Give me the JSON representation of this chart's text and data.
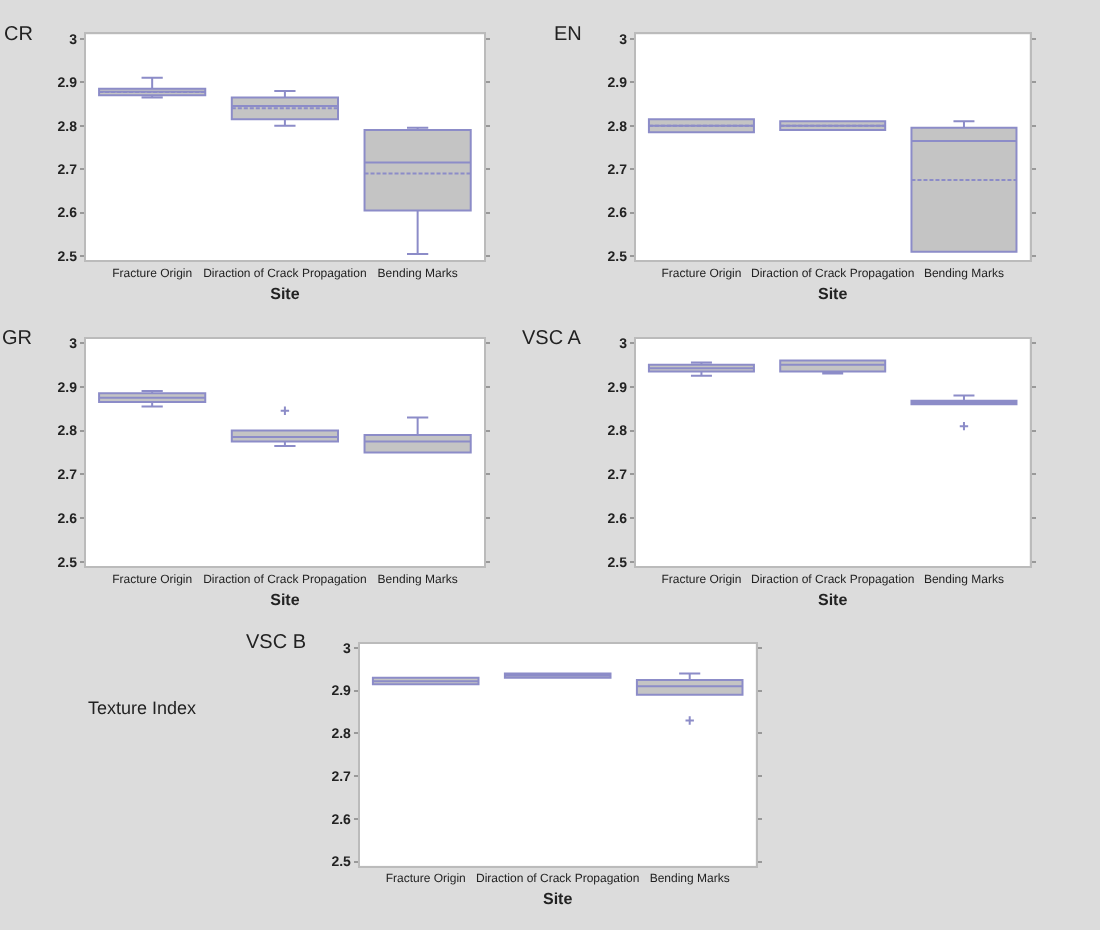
{
  "chart_data": [
    {
      "type": "box",
      "title": "CR",
      "xlabel": "Site",
      "categories": [
        "Fracture Origin",
        "Diraction of Crack Propagation",
        "Bending Marks"
      ],
      "color": "#c4c4c4",
      "ylim": [
        2.49,
        3.01
      ],
      "yticks": [
        2.5,
        2.6,
        2.7,
        2.8,
        2.9,
        3
      ],
      "grid": false,
      "boxes": [
        {
          "low": 2.865,
          "q1": 2.87,
          "median": 2.878,
          "q3": 2.885,
          "high": 2.91
        },
        {
          "low": 2.8,
          "q1": 2.815,
          "median": 2.845,
          "q3": 2.865,
          "high": 2.88
        },
        {
          "low": 2.505,
          "q1": 2.605,
          "median": 2.715,
          "q3": 2.79,
          "high": 2.795,
          "mean": 2.69
        }
      ]
    },
    {
      "type": "box",
      "title": "EN",
      "xlabel": "Site",
      "categories": [
        "Fracture Origin",
        "Diraction of Crack Propagation",
        "Bending Marks"
      ],
      "color": "#c4c4c4",
      "ylim": [
        2.49,
        3.01
      ],
      "yticks": [
        2.5,
        2.6,
        2.7,
        2.8,
        2.9,
        3
      ],
      "grid": false,
      "boxes": [
        {
          "low": 2.785,
          "q1": 2.785,
          "median": 2.8,
          "q3": 2.815,
          "high": 2.815
        },
        {
          "low": 2.79,
          "q1": 2.79,
          "median": 2.8,
          "q3": 2.81,
          "high": 2.81
        },
        {
          "low": 2.51,
          "q1": 2.51,
          "median": 2.765,
          "q3": 2.795,
          "high": 2.81,
          "mean": 2.675
        }
      ]
    },
    {
      "type": "box",
      "title": "GR",
      "xlabel": "Site",
      "categories": [
        "Fracture Origin",
        "Diraction of Crack Propagation",
        "Bending Marks"
      ],
      "color": "#c4c4c4",
      "ylim": [
        2.49,
        3.01
      ],
      "yticks": [
        2.5,
        2.6,
        2.7,
        2.8,
        2.9,
        3
      ],
      "grid": false,
      "boxes": [
        {
          "low": 2.855,
          "q1": 2.865,
          "median": 2.875,
          "q3": 2.885,
          "high": 2.89
        },
        {
          "low": 2.765,
          "q1": 2.775,
          "median": 2.785,
          "q3": 2.8,
          "high": 2.8,
          "outliers": [
            2.845
          ]
        },
        {
          "low": 2.75,
          "q1": 2.75,
          "median": 2.775,
          "q3": 2.79,
          "high": 2.83
        }
      ]
    },
    {
      "type": "box",
      "title": "VSC A",
      "xlabel": "Site",
      "categories": [
        "Fracture Origin",
        "Diraction of Crack Propagation",
        "Bending Marks"
      ],
      "color": "#c4c4c4",
      "ylim": [
        2.49,
        3.01
      ],
      "yticks": [
        2.5,
        2.6,
        2.7,
        2.8,
        2.9,
        3
      ],
      "grid": false,
      "boxes": [
        {
          "low": 2.925,
          "q1": 2.935,
          "median": 2.942,
          "q3": 2.95,
          "high": 2.955
        },
        {
          "low": 2.93,
          "q1": 2.935,
          "median": 2.95,
          "q3": 2.96,
          "high": 2.96
        },
        {
          "low": 2.86,
          "q1": 2.86,
          "median": 2.865,
          "q3": 2.868,
          "high": 2.88,
          "outliers": [
            2.81
          ]
        }
      ]
    },
    {
      "type": "box",
      "title": "VSC B",
      "xlabel": "Site",
      "ylabel": "Texture Index",
      "categories": [
        "Fracture Origin",
        "Diraction of Crack Propagation",
        "Bending Marks"
      ],
      "color": "#c4c4c4",
      "ylim": [
        2.49,
        3.01
      ],
      "yticks": [
        2.5,
        2.6,
        2.7,
        2.8,
        2.9,
        3
      ],
      "grid": false,
      "boxes": [
        {
          "low": 2.915,
          "q1": 2.915,
          "median": 2.922,
          "q3": 2.93,
          "high": 2.93
        },
        {
          "low": 2.93,
          "q1": 2.93,
          "median": 2.935,
          "q3": 2.94,
          "high": 2.94
        },
        {
          "low": 2.89,
          "q1": 2.89,
          "median": 2.91,
          "q3": 2.925,
          "high": 2.94,
          "outliers": [
            2.83
          ]
        }
      ]
    }
  ]
}
